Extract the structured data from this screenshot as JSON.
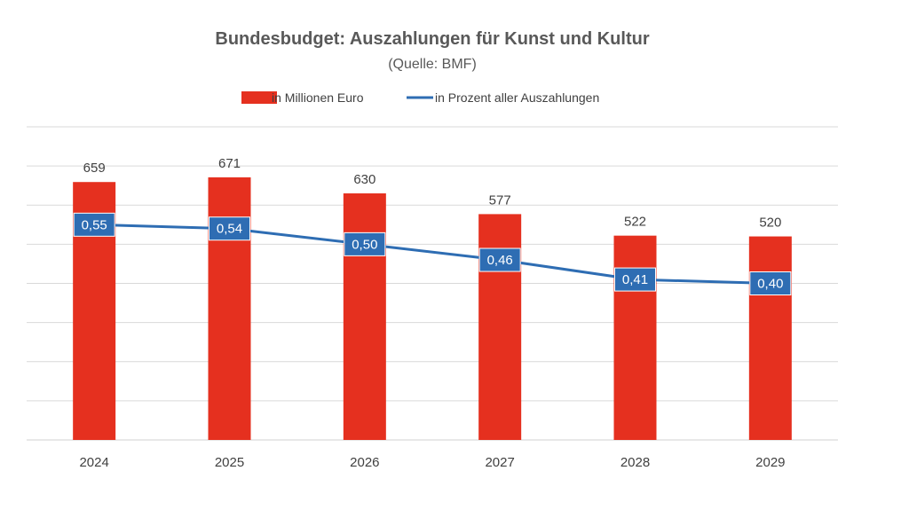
{
  "chart_data": {
    "type": "bar",
    "title": "Bundesbudget: Auszahlungen für Kunst und Kultur",
    "subtitle": "(Quelle: BMF)",
    "categories": [
      "2024",
      "2025",
      "2026",
      "2027",
      "2028",
      "2029"
    ],
    "series": [
      {
        "name": "in Millionen Euro",
        "type": "bar",
        "axis": "primary",
        "values": [
          659,
          671,
          630,
          577,
          522,
          520
        ],
        "labels": [
          "659",
          "671",
          "630",
          "577",
          "522",
          "520"
        ]
      },
      {
        "name": "in Prozent aller Auszahlungen",
        "type": "line",
        "axis": "secondary",
        "values": [
          0.55,
          0.54,
          0.5,
          0.46,
          0.41,
          0.4
        ],
        "labels": [
          "0,55",
          "0,54",
          "0,50",
          "0,46",
          "0,41",
          "0,40"
        ]
      }
    ],
    "ylim": [
      0,
      800
    ],
    "y2lim": [
      0,
      0.8
    ],
    "grid": true,
    "legend_position": "top",
    "colors": {
      "bar": "#e5301f",
      "line": "#2e6db3",
      "label_box": "#2e6db3",
      "grid": "#d9d9d9",
      "text": "#404040"
    }
  }
}
